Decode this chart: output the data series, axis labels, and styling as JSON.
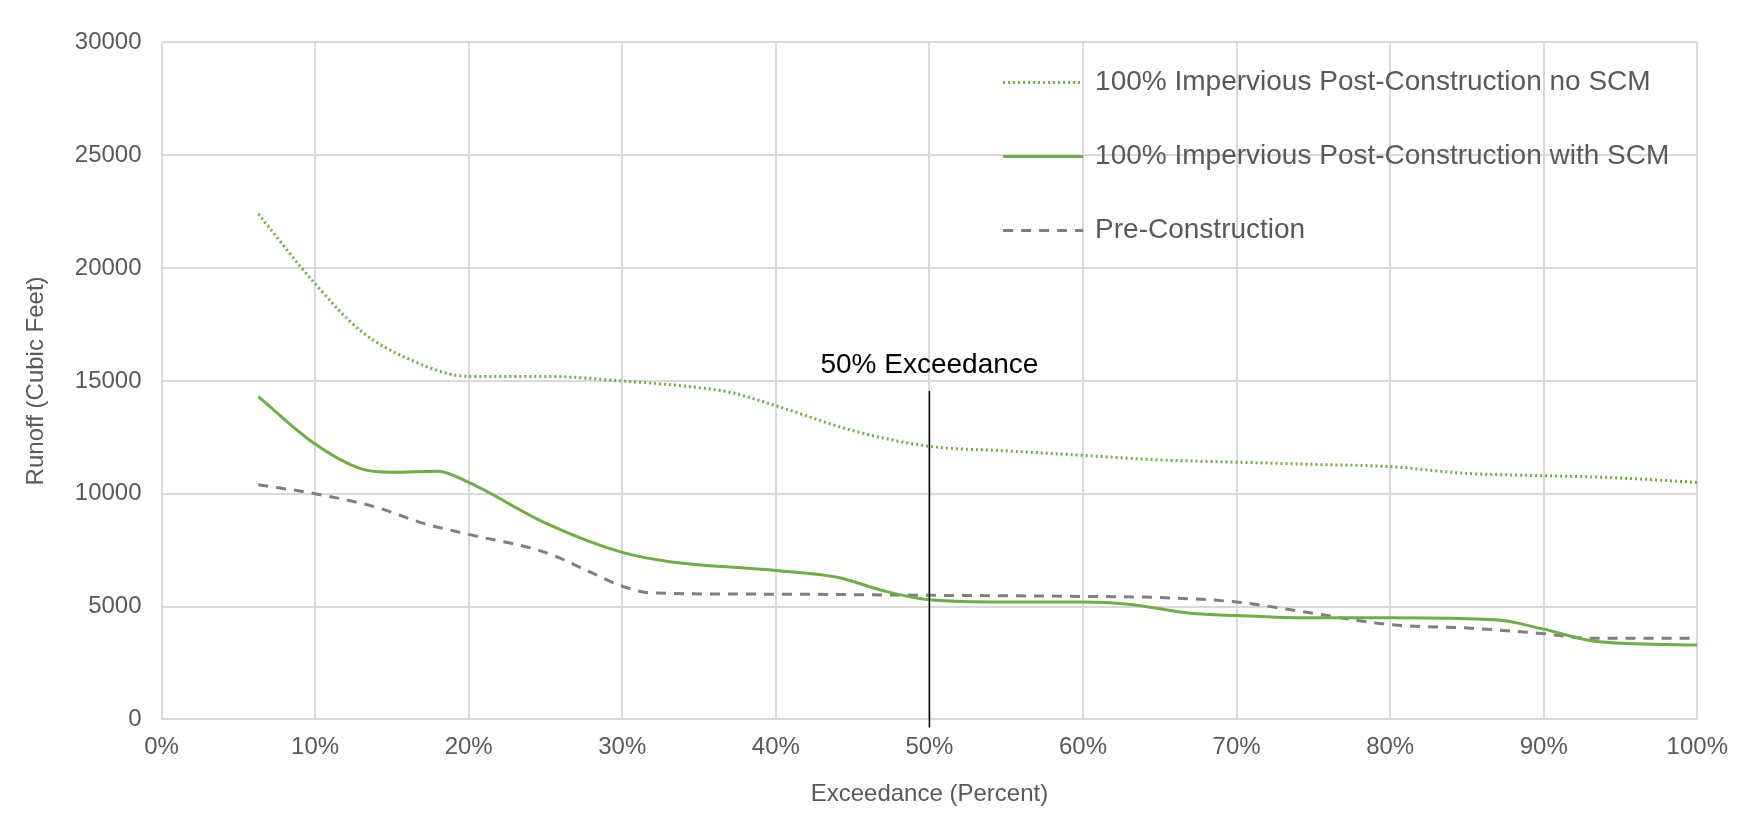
{
  "chart_data": {
    "type": "line",
    "xlabel": "Exceedance (Percent)",
    "ylabel": "Runoff (Cubic Feet)",
    "xlim": [
      0,
      100
    ],
    "xticks": [
      {
        "value": 0,
        "label": "0%"
      },
      {
        "value": 10,
        "label": "10%"
      },
      {
        "value": 20,
        "label": "20%"
      },
      {
        "value": 30,
        "label": "30%"
      },
      {
        "value": 40,
        "label": "40%"
      },
      {
        "value": 50,
        "label": "50%"
      },
      {
        "value": 60,
        "label": "60%"
      },
      {
        "value": 70,
        "label": "70%"
      },
      {
        "value": 80,
        "label": "80%"
      },
      {
        "value": 90,
        "label": "90%"
      },
      {
        "value": 100,
        "label": "100%"
      }
    ],
    "ylim": [
      0,
      30000
    ],
    "yticks": [
      0,
      5000,
      10000,
      15000,
      20000,
      25000,
      30000
    ],
    "grid": true,
    "legend": "top right",
    "marker": "none",
    "ref_lines": [
      {
        "axis": "x",
        "value": 50,
        "label": "50% Exceedance",
        "color": "#000000"
      }
    ],
    "series": [
      {
        "name": "100% Impervious Post-Construction no SCM",
        "color": "#70ad47",
        "line_style": "dotted",
        "x": [
          6.3,
          10,
          13,
          16,
          20,
          25,
          30,
          35,
          37,
          40,
          45,
          50,
          55,
          60,
          65,
          70,
          75,
          80,
          85,
          90,
          95,
          100
        ],
        "values": [
          22400,
          19300,
          17200,
          16000,
          15200,
          15200,
          15000,
          14700,
          14500,
          13900,
          12800,
          12100,
          11900,
          11700,
          11500,
          11400,
          11300,
          11200,
          10900,
          10800,
          10700,
          10500
        ]
      },
      {
        "name": "100% Impervious Post-Construction with SCM",
        "color": "#70ad47",
        "line_style": "solid",
        "x": [
          6.3,
          10,
          13,
          15,
          18,
          20,
          25,
          30,
          33,
          40,
          44,
          47,
          50,
          55,
          60,
          63,
          67,
          70,
          75,
          80,
          87,
          90,
          93,
          96,
          100
        ],
        "values": [
          14300,
          12200,
          11100,
          10950,
          11000,
          10500,
          8700,
          7400,
          7000,
          6600,
          6300,
          5700,
          5300,
          5200,
          5200,
          5100,
          4700,
          4600,
          4500,
          4500,
          4400,
          4000,
          3500,
          3350,
          3300
        ]
      },
      {
        "name": "Pre-Construction",
        "color": "#7f7f7f",
        "line_style": "dashed",
        "x": [
          6.3,
          10,
          14,
          17,
          20,
          25,
          28,
          30,
          32,
          40,
          50,
          60,
          65,
          70,
          75,
          80,
          85,
          90,
          93,
          100
        ],
        "values": [
          10400,
          10000,
          9400,
          8700,
          8200,
          7400,
          6500,
          5900,
          5600,
          5550,
          5500,
          5450,
          5400,
          5200,
          4700,
          4200,
          4050,
          3800,
          3600,
          3600
        ]
      }
    ]
  }
}
